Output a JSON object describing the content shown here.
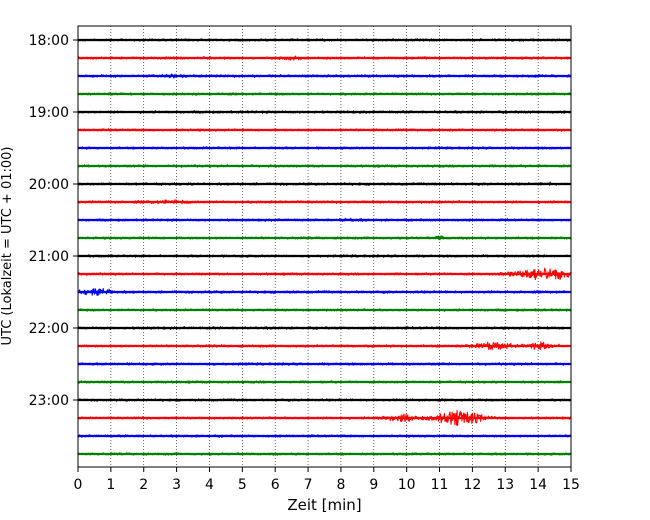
{
  "chart_data": {
    "type": "line",
    "title": "",
    "xlabel": "Zeit  [min]",
    "ylabel": "UTC (Lokalzeit = UTC + 01:00)",
    "xlim": [
      0,
      15
    ],
    "x_ticks": [
      "0",
      "1",
      "2",
      "3",
      "4",
      "5",
      "6",
      "7",
      "8",
      "9",
      "10",
      "11",
      "12",
      "13",
      "14",
      "15"
    ],
    "y_ticks": [
      {
        "label": "18:00",
        "row": 0
      },
      {
        "label": "19:00",
        "row": 4
      },
      {
        "label": "20:00",
        "row": 8
      },
      {
        "label": "21:00",
        "row": 12
      },
      {
        "label": "22:00",
        "row": 16
      },
      {
        "label": "23:00",
        "row": 20
      }
    ],
    "grid": "vertical-dotted",
    "series_colors": [
      "#000000",
      "#ff0000",
      "#0000ff",
      "#008000"
    ],
    "traces": [
      {
        "start": "18:00",
        "color": "#000000",
        "noise": 0.35,
        "bursts": []
      },
      {
        "start": "18:15",
        "color": "#ff0000",
        "noise": 0.4,
        "bursts": [
          {
            "center": 6.5,
            "width": 0.4,
            "amp": 0.6
          }
        ]
      },
      {
        "start": "18:30",
        "color": "#0000ff",
        "noise": 0.45,
        "bursts": [
          {
            "center": 3.0,
            "width": 0.3,
            "amp": 0.6
          }
        ]
      },
      {
        "start": "18:45",
        "color": "#008000",
        "noise": 0.35,
        "bursts": []
      },
      {
        "start": "19:00",
        "color": "#000000",
        "noise": 0.4,
        "bursts": []
      },
      {
        "start": "19:15",
        "color": "#ff0000",
        "noise": 0.35,
        "bursts": []
      },
      {
        "start": "19:30",
        "color": "#0000ff",
        "noise": 0.35,
        "bursts": []
      },
      {
        "start": "19:45",
        "color": "#008000",
        "noise": 0.35,
        "bursts": []
      },
      {
        "start": "20:00",
        "color": "#000000",
        "noise": 0.4,
        "bursts": [
          {
            "center": 14.3,
            "width": 0.15,
            "amp": 0.8
          }
        ]
      },
      {
        "start": "20:15",
        "color": "#ff0000",
        "noise": 0.45,
        "bursts": [
          {
            "center": 2.8,
            "width": 0.6,
            "amp": 0.7
          }
        ]
      },
      {
        "start": "20:30",
        "color": "#0000ff",
        "noise": 0.35,
        "bursts": [
          {
            "center": 8.3,
            "width": 0.3,
            "amp": 0.6
          }
        ]
      },
      {
        "start": "20:45",
        "color": "#008000",
        "noise": 0.35,
        "bursts": [
          {
            "center": 11.0,
            "width": 0.1,
            "amp": 1.4
          }
        ]
      },
      {
        "start": "21:00",
        "color": "#000000",
        "noise": 0.35,
        "bursts": []
      },
      {
        "start": "21:15",
        "color": "#ff0000",
        "noise": 0.35,
        "bursts": [
          {
            "center": 14.2,
            "width": 1.0,
            "amp": 3.2
          }
        ]
      },
      {
        "start": "21:30",
        "color": "#0000ff",
        "noise": 0.45,
        "bursts": [
          {
            "center": 0.6,
            "width": 0.5,
            "amp": 1.6
          }
        ]
      },
      {
        "start": "21:45",
        "color": "#008000",
        "noise": 0.35,
        "bursts": []
      },
      {
        "start": "22:00",
        "color": "#000000",
        "noise": 0.4,
        "bursts": []
      },
      {
        "start": "22:15",
        "color": "#ff0000",
        "noise": 0.4,
        "bursts": [
          {
            "center": 12.6,
            "width": 0.6,
            "amp": 1.8
          },
          {
            "center": 14.1,
            "width": 0.4,
            "amp": 2.0
          }
        ]
      },
      {
        "start": "22:30",
        "color": "#0000ff",
        "noise": 0.4,
        "bursts": []
      },
      {
        "start": "22:45",
        "color": "#008000",
        "noise": 0.35,
        "bursts": []
      },
      {
        "start": "23:00",
        "color": "#000000",
        "noise": 0.35,
        "bursts": []
      },
      {
        "start": "23:15",
        "color": "#ff0000",
        "noise": 0.35,
        "bursts": [
          {
            "center": 9.8,
            "width": 0.5,
            "amp": 2.0
          },
          {
            "center": 11.6,
            "width": 0.7,
            "amp": 4.2
          }
        ]
      },
      {
        "start": "23:30",
        "color": "#0000ff",
        "noise": 0.35,
        "bursts": []
      },
      {
        "start": "23:45",
        "color": "#008000",
        "noise": 0.35,
        "bursts": []
      }
    ]
  }
}
